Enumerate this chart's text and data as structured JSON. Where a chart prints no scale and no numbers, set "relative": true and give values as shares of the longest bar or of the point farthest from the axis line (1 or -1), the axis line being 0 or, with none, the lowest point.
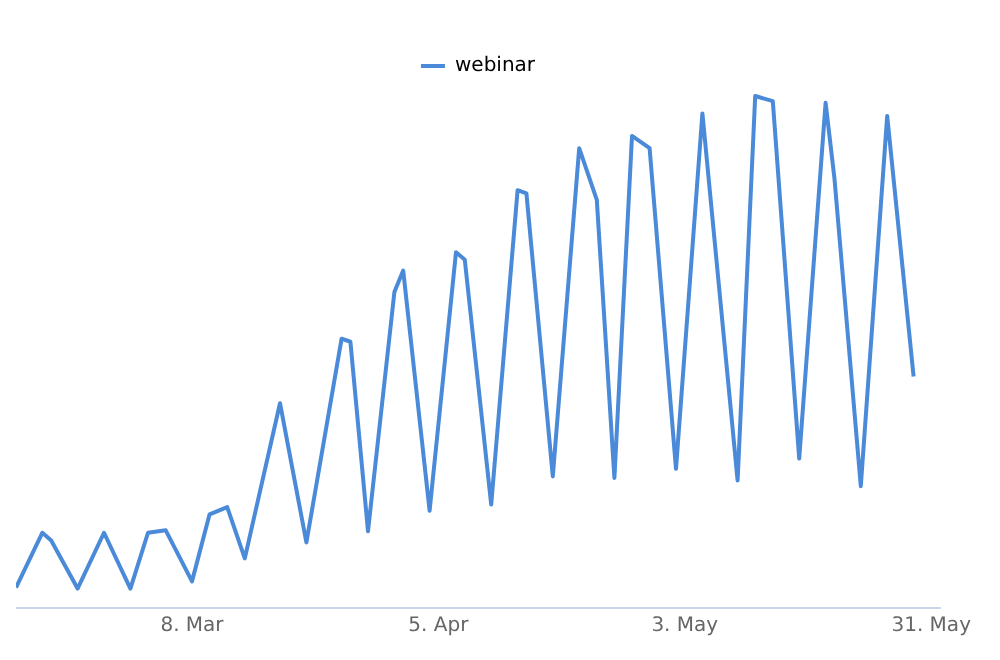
{
  "chart_data": {
    "type": "line",
    "relative": true,
    "legend": "top",
    "grid": false,
    "marker": "none",
    "x": [
      "--02-16",
      "--02-19",
      "--02-20",
      "--02-23",
      "--02-26",
      "--03-01",
      "--03-03",
      "--03-05",
      "--03-08",
      "--03-10",
      "--03-12",
      "--03-14",
      "--03-18",
      "--03-21",
      "--03-25",
      "--03-26",
      "--03-28",
      "--03-31",
      "--04-01",
      "--04-04",
      "--04-07",
      "--04-08",
      "--04-11",
      "--04-14",
      "--04-15",
      "--04-18",
      "--04-21",
      "--04-23",
      "--04-25",
      "--04-27",
      "--04-29",
      "--05-02",
      "--05-05",
      "--05-09",
      "--05-11",
      "--05-13",
      "--05-16",
      "--05-19",
      "--05-20",
      "--05-23",
      "--05-26",
      "--05-29"
    ],
    "xlim": [
      "--02-16",
      "--06-01"
    ],
    "xticks": [
      {
        "value": "--03-08",
        "label": "8. Mar"
      },
      {
        "value": "--04-05",
        "label": "5. Apr"
      },
      {
        "value": "--05-03",
        "label": "3. May"
      },
      {
        "value": "--05-31",
        "label": "31. May"
      }
    ],
    "series": [
      {
        "name": "webinar",
        "color": "#4a8ad8",
        "values": [
          0.04,
          0.147,
          0.132,
          0.038,
          0.147,
          0.038,
          0.147,
          0.152,
          0.052,
          0.183,
          0.197,
          0.097,
          0.4,
          0.128,
          0.526,
          0.52,
          0.15,
          0.617,
          0.659,
          0.19,
          0.695,
          0.68,
          0.202,
          0.816,
          0.81,
          0.257,
          0.898,
          0.797,
          0.254,
          0.922,
          0.898,
          0.272,
          0.966,
          0.249,
          1,
          0.99,
          0.292,
          0.987,
          0.84,
          0.238,
          0.961,
          0.452
        ]
      }
    ]
  }
}
